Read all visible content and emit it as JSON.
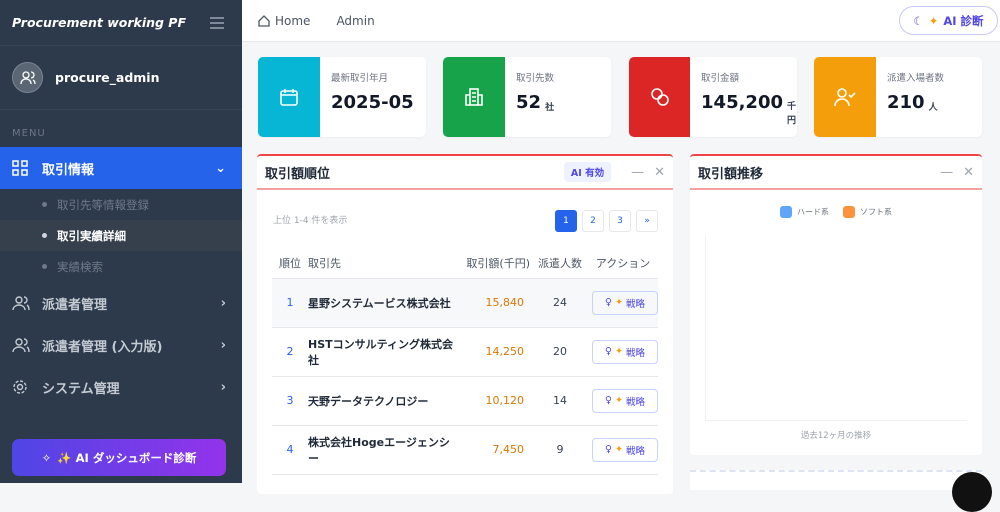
{
  "sidebar": {
    "brand": "Procurement working PF",
    "user": "procure_admin",
    "menu_heading": "MENU",
    "items": [
      {
        "label": "取引情報",
        "icon": "grid-icon",
        "expanded": true,
        "sub": [
          "取引先等情報登録",
          "取引実績詳細",
          "実績検索"
        ]
      },
      {
        "label": "派遣者管理",
        "icon": "users-icon"
      },
      {
        "label": "派遣者管理 (入力版)",
        "icon": "users-icon"
      },
      {
        "label": "システム管理",
        "icon": "gear-icon"
      }
    ],
    "ai_button": "✨ AI ダッシュボード診断"
  },
  "header": {
    "breadcrumb": [
      "Home",
      "Admin"
    ],
    "ai_button": "AI 診断"
  },
  "cards": [
    {
      "label": "最新取引年月",
      "value": "2025-05",
      "unit": "",
      "color": "#06b6d4",
      "icon": "calendar-icon"
    },
    {
      "label": "取引先数",
      "value": "52",
      "unit": "社",
      "color": "#16a34a",
      "icon": "building-icon"
    },
    {
      "label": "取引金額",
      "value": "145,200",
      "unit": "千円",
      "color": "#dc2626",
      "icon": "coins-icon"
    },
    {
      "label": "派遣入場者数",
      "value": "210",
      "unit": "人",
      "color": "#f59e0b",
      "icon": "user-check-icon"
    }
  ],
  "ranking": {
    "title": "取引額順位",
    "badge": "AI 有効",
    "shown": "上位 1-4 件を表示",
    "pages": [
      "1",
      "2",
      "3",
      "»"
    ],
    "columns": [
      "順位",
      "取引先",
      "取引額(千円)",
      "派遣人数",
      "アクション"
    ],
    "rows": [
      {
        "rank": "1",
        "name": "星野システムービス株式会社",
        "amount": "15,840",
        "people": "24"
      },
      {
        "rank": "2",
        "name": "HSTコンサルティング株式会社",
        "amount": "14,250",
        "people": "20"
      },
      {
        "rank": "3",
        "name": "天野データテクノロジー",
        "amount": "10,120",
        "people": "14"
      },
      {
        "rank": "4",
        "name": "株式会社Hogeエージェンシー",
        "amount": "7,450",
        "people": "9"
      }
    ],
    "action_label": "戦略"
  },
  "trend": {
    "title": "取引額推移",
    "legend": [
      {
        "name": "ハード系",
        "color": "#60a5fa"
      },
      {
        "name": "ソフト系",
        "color": "#fb923c"
      }
    ],
    "caption": "過去12ヶ月の推移"
  }
}
